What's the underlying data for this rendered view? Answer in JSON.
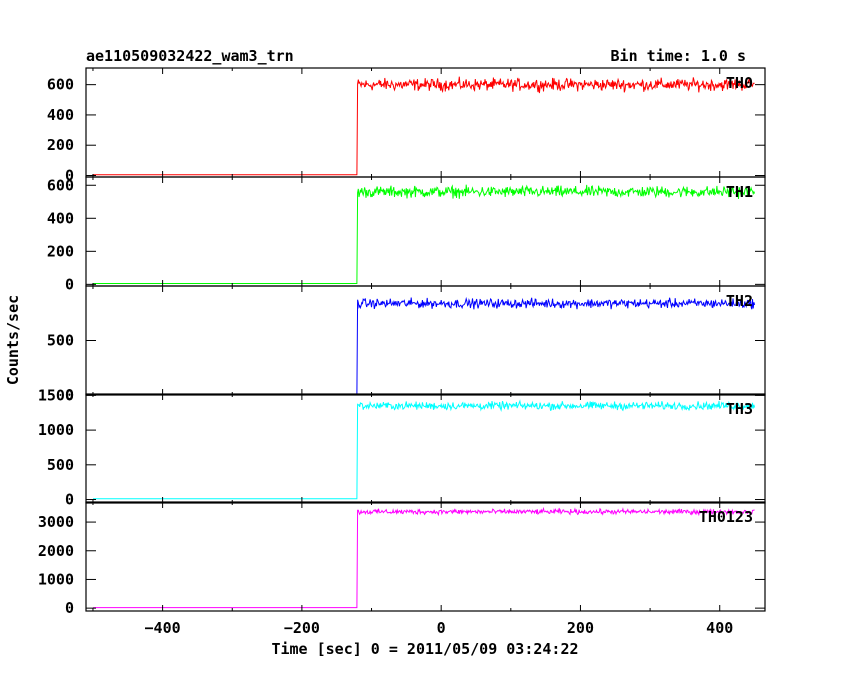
{
  "chart_data": {
    "type": "line",
    "title": "ae110509032422_wam3_trn",
    "bin_time_label": "Bin time: 1.0 s",
    "xlabel": "Time [sec] 0 = 2011/05/09 03:24:22",
    "ylabel": "Counts/sec",
    "xlim": [
      -510,
      465
    ],
    "xticks": [
      -400,
      -200,
      0,
      200,
      400
    ],
    "xtick_labels": [
      "−400",
      "−200",
      "0",
      "200",
      "400"
    ],
    "step_time": -120,
    "data_start": -500,
    "data_end": 450,
    "grid": false,
    "series": [
      {
        "name": "TH0",
        "color": "#ff0000",
        "ylim": [
          -10,
          710
        ],
        "yticks": [
          0,
          200,
          400,
          600
        ],
        "ytick_labels": [
          "0",
          "200",
          "400",
          "600"
        ],
        "pre_level": 5,
        "post_level": 600,
        "noise": 28
      },
      {
        "name": "TH1",
        "color": "#00ff00",
        "ylim": [
          -10,
          650
        ],
        "yticks": [
          0,
          200,
          400,
          600
        ],
        "ytick_labels": [
          "0",
          "200",
          "400",
          "600"
        ],
        "pre_level": 5,
        "post_level": 560,
        "noise": 24
      },
      {
        "name": "TH2",
        "color": "#0000ff",
        "ylim": [
          0,
          1000
        ],
        "yticks": [
          0,
          500
        ],
        "ytick_labels": [
          "0",
          "500"
        ],
        "pre_level": 8,
        "post_level": 840,
        "noise": 30
      },
      {
        "name": "TH3",
        "color": "#00ffff",
        "ylim": [
          -50,
          1520
        ],
        "yticks": [
          0,
          500,
          1000,
          1500
        ],
        "ytick_labels": [
          "0",
          "500",
          "1000",
          "1500"
        ],
        "pre_level": 10,
        "post_level": 1350,
        "noise": 40
      },
      {
        "name": "TH0123",
        "color": "#ff00ff",
        "ylim": [
          -100,
          3700
        ],
        "yticks": [
          0,
          1000,
          2000,
          3000
        ],
        "ytick_labels": [
          "0",
          "1000",
          "2000",
          "3000"
        ],
        "pre_level": 20,
        "post_level": 3360,
        "noise": 60
      }
    ]
  }
}
